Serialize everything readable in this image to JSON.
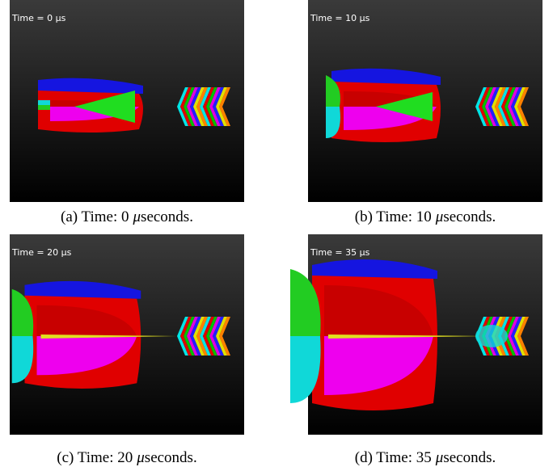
{
  "figure": {
    "panels": [
      {
        "overlay": "Time = 0 μs",
        "caption": {
          "prefix": "(a) Time: 0",
          "mu": "μ",
          "suffix": "seconds."
        }
      },
      {
        "overlay": "Time = 10 μs",
        "caption": {
          "prefix": "(b) Time: 10",
          "mu": "μ",
          "suffix": "seconds."
        }
      },
      {
        "overlay": "Time = 20 μs",
        "caption": {
          "prefix": "(c) Time: 20",
          "mu": "μ",
          "suffix": "seconds."
        }
      },
      {
        "overlay": "Time = 35 μs",
        "caption": {
          "prefix": "(d) Time: 35",
          "mu": "μ",
          "suffix": "seconds."
        }
      }
    ]
  }
}
